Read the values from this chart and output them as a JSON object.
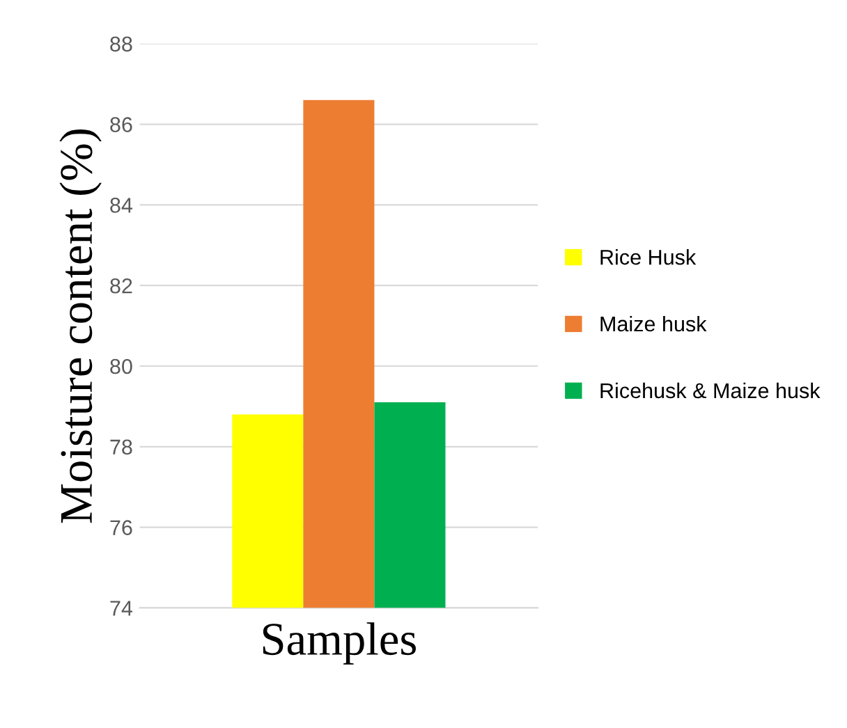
{
  "chart_data": {
    "type": "bar",
    "xlabel": "Samples",
    "ylabel": "Moisture content (%)",
    "categories": [
      null
    ],
    "series": [
      {
        "name": "Rice Husk",
        "color": "#ffff00",
        "values": [
          78.8
        ]
      },
      {
        "name": "Maize husk",
        "color": "#ed7d31",
        "values": [
          86.6
        ]
      },
      {
        "name": "Ricehusk & Maize husk",
        "color": "#00b050",
        "values": [
          79.1
        ]
      }
    ],
    "ylim": [
      74,
      88
    ],
    "yticks": [
      74,
      76,
      78,
      80,
      82,
      84,
      86,
      88
    ],
    "grid": "y",
    "legend": "right"
  }
}
